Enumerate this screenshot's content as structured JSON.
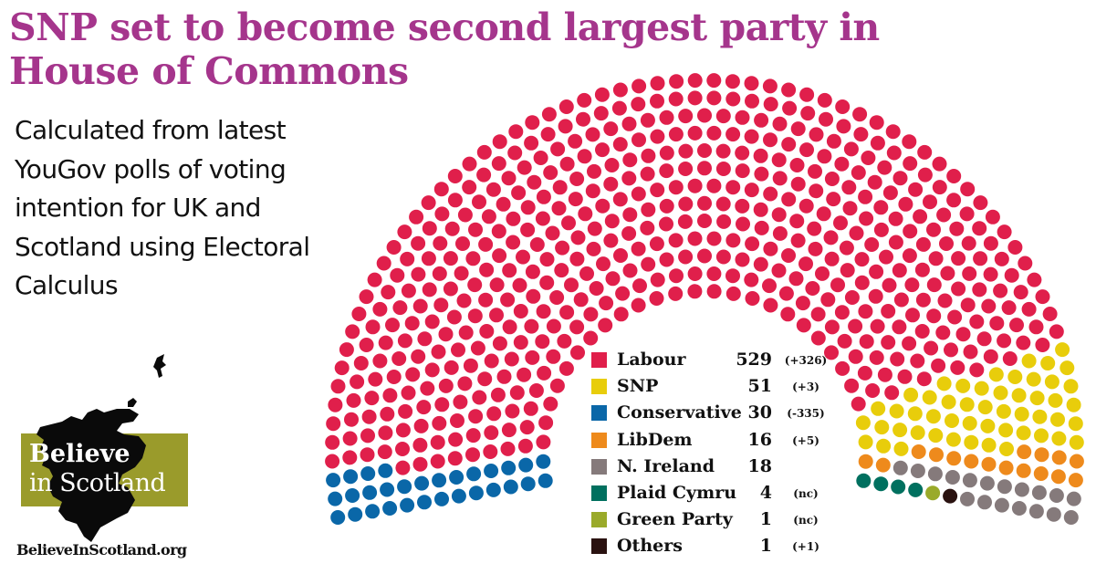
{
  "title": "SNP set to become second largest party in House of Commons",
  "subtitle": "Calculated from latest YouGov polls of voting intention for UK and Scotland using Electoral Calculus",
  "logo": {
    "line1": "Believe",
    "line2": "in Scotland",
    "url": "BelieveInScotland.org",
    "green": "#9a9b2b"
  },
  "chart_data": {
    "type": "parliament",
    "total_seats": 650,
    "legend_placement": "center",
    "parties": [
      {
        "name": "Labour",
        "seats": 529,
        "change": "(+326)",
        "color": "#e01f4b"
      },
      {
        "name": "SNP",
        "seats": 51,
        "change": "(+3)",
        "color": "#e8cd0b"
      },
      {
        "name": "Conservative",
        "seats": 30,
        "change": "(-335)",
        "color": "#0a67a8"
      },
      {
        "name": "LibDem",
        "seats": 16,
        "change": "(+5)",
        "color": "#ee8a1c"
      },
      {
        "name": "N. Ireland",
        "seats": 18,
        "change": "",
        "color": "#857a7b"
      },
      {
        "name": "Plaid Cymru",
        "seats": 4,
        "change": "(nc)",
        "color": "#00705f"
      },
      {
        "name": "Green Party",
        "seats": 1,
        "change": "(nc)",
        "color": "#9aaa2a"
      },
      {
        "name": "Others",
        "seats": 1,
        "change": "(+1)",
        "color": "#2a1210"
      }
    ],
    "seat_order_left_to_right": [
      "Conservative",
      "Labour",
      "SNP",
      "LibDem",
      "N. Ireland",
      "Others",
      "Green Party",
      "Plaid Cymru"
    ]
  }
}
